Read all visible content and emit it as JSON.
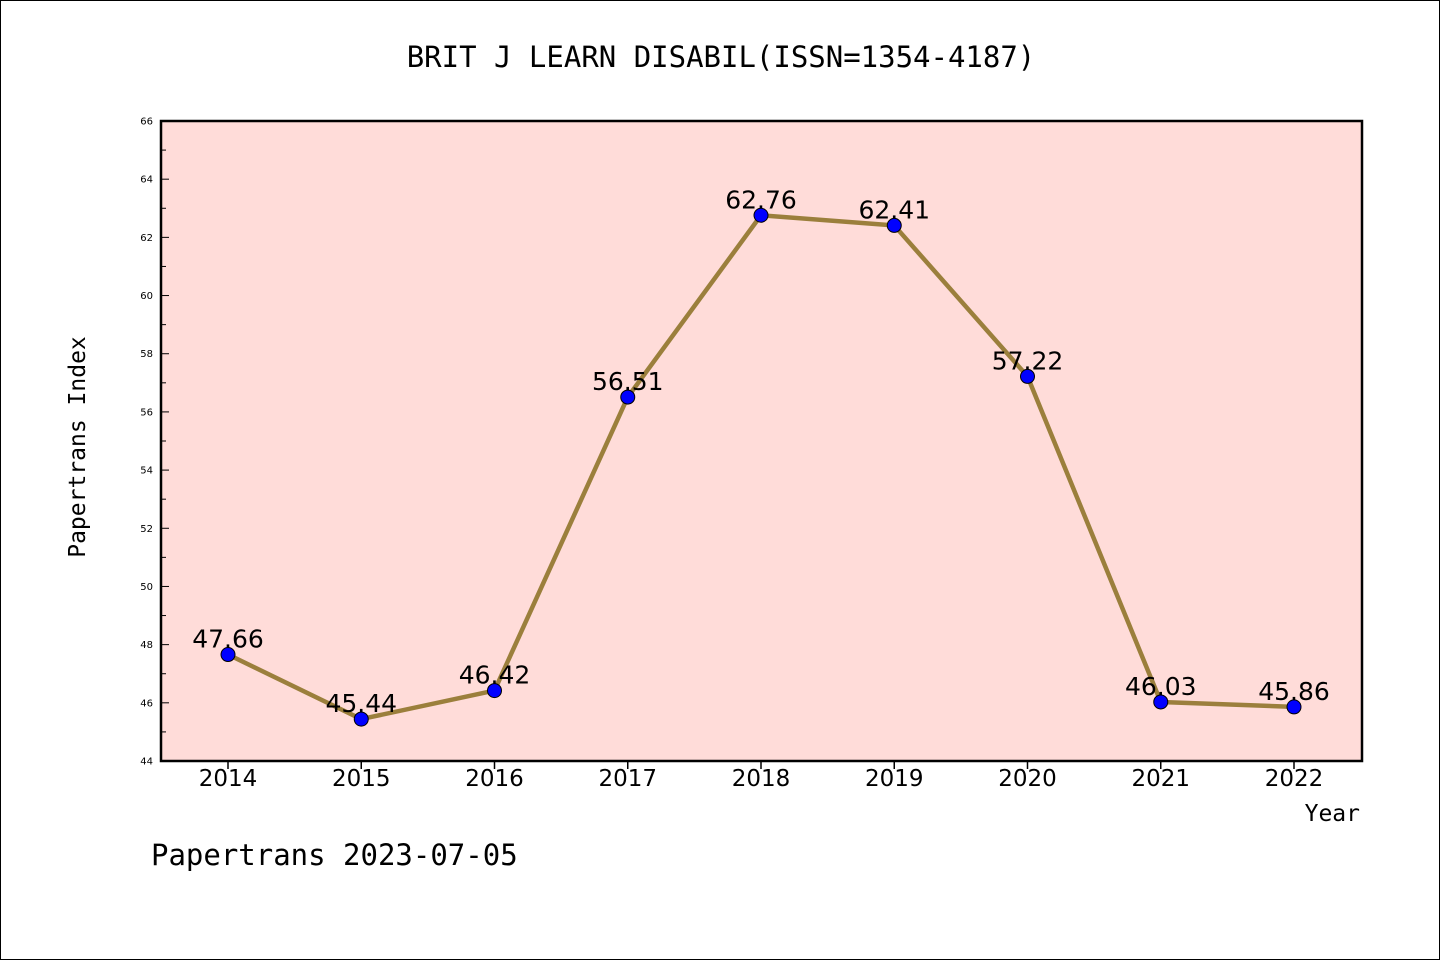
{
  "chart_data": {
    "type": "line",
    "title": "BRIT J LEARN DISABIL(ISSN=1354-4187)",
    "xlabel": "Year",
    "ylabel": "Papertrans Index",
    "categories": [
      "2014",
      "2015",
      "2016",
      "2017",
      "2018",
      "2019",
      "2020",
      "2021",
      "2022"
    ],
    "series": [
      {
        "values": [
          47.66,
          45.44,
          46.42,
          56.51,
          62.76,
          62.41,
          57.22,
          46.03,
          45.86
        ],
        "labels": [
          "47.66",
          "45.44",
          "46.42",
          "56.51",
          "62.76",
          "62.41",
          "57.22",
          "46.03",
          "45.86"
        ]
      }
    ],
    "ylim": [
      44,
      66
    ],
    "yticks": [
      "44",
      "46",
      "48",
      "50",
      "52",
      "54",
      "56",
      "58",
      "60",
      "62",
      "64",
      "66"
    ],
    "grid": false,
    "legend": "none",
    "colors": {
      "plot_background": "#ffdcd9",
      "line": "#9b7f3c",
      "marker": "#0000ff"
    }
  },
  "footer": "Papertrans 2023-07-05"
}
